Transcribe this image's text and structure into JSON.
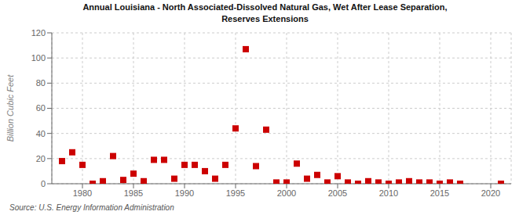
{
  "chart_data": {
    "type": "scatter",
    "title": "Annual Louisiana - North Associated-Dissolved Natural Gas, Wet After Lease Separation,",
    "subtitle": "Reserves Extensions",
    "ylabel": "Billion Cubic Feet",
    "annotations": [
      "Source: U.S. Energy Information Administration"
    ],
    "x": [
      1978,
      1979,
      1980,
      1981,
      1982,
      1983,
      1984,
      1985,
      1986,
      1987,
      1988,
      1989,
      1990,
      1991,
      1992,
      1993,
      1994,
      1995,
      1996,
      1997,
      1998,
      1999,
      2000,
      2001,
      2002,
      2003,
      2004,
      2005,
      2006,
      2007,
      2008,
      2009,
      2010,
      2011,
      2012,
      2013,
      2014,
      2015,
      2016,
      2017,
      2021
    ],
    "values": [
      18,
      25,
      15,
      0,
      2,
      22,
      3,
      8,
      2,
      19,
      19,
      4,
      15,
      15,
      10,
      4,
      15,
      44,
      107,
      14,
      43,
      1,
      1,
      16,
      4,
      7,
      1,
      6,
      1,
      0,
      2,
      1,
      0,
      1,
      2,
      1,
      1,
      0,
      1,
      0,
      0
    ],
    "color": "#cc0000",
    "marker": "square",
    "xlim": [
      1977,
      2022
    ],
    "xticks": [
      1980,
      1985,
      1990,
      1995,
      2000,
      2005,
      2010,
      2015,
      2020
    ],
    "ylim": [
      0,
      120
    ],
    "yticks": [
      0,
      20,
      40,
      60,
      80,
      100,
      120
    ],
    "grid": true
  }
}
